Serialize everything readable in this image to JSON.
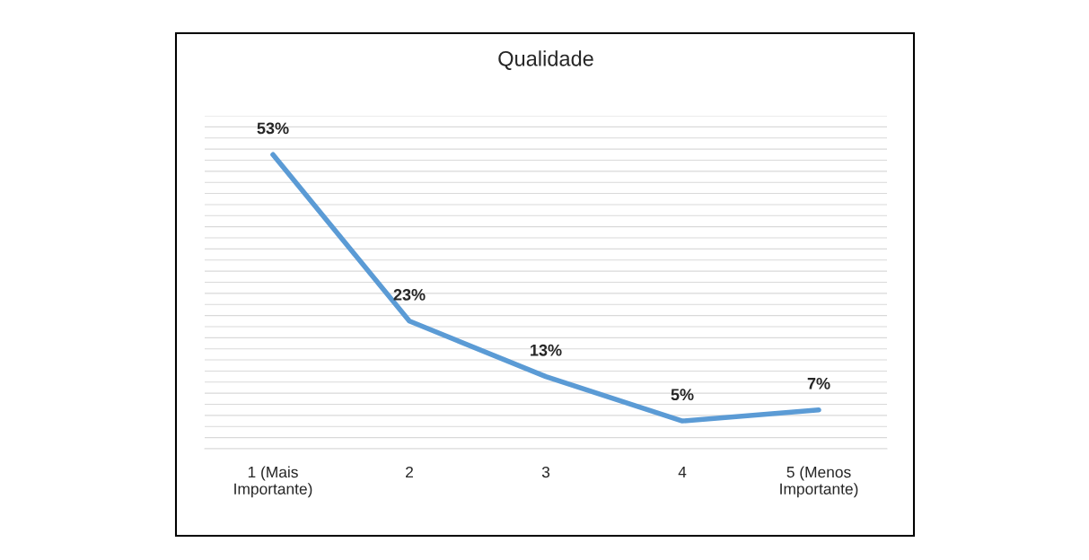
{
  "chart_data": {
    "type": "line",
    "title": "Qualidade",
    "categories": [
      "1 (Mais\nImportante)",
      "2",
      "3",
      "4",
      "5 (Menos\nImportante)"
    ],
    "series": [
      {
        "color": "#5b9bd5",
        "values": [
          53,
          23,
          13,
          5,
          7
        ],
        "value_labels": [
          "53%",
          "23%",
          "13%",
          "5%",
          "7%"
        ]
      }
    ],
    "ylim": [
      0,
      60
    ],
    "yticks": [
      {
        "value": 0,
        "label": null
      },
      {
        "value": 2,
        "label": null
      },
      {
        "value": 4,
        "label": null
      },
      {
        "value": 6,
        "label": null
      },
      {
        "value": 8,
        "label": null
      },
      {
        "value": 10,
        "label": null
      },
      {
        "value": 12,
        "label": null
      },
      {
        "value": 14,
        "label": null
      },
      {
        "value": 16,
        "label": null
      },
      {
        "value": 18,
        "label": null
      },
      {
        "value": 20,
        "label": null
      },
      {
        "value": 22,
        "label": null
      },
      {
        "value": 24,
        "label": null
      },
      {
        "value": 26,
        "label": null
      },
      {
        "value": 28,
        "label": null
      },
      {
        "value": 30,
        "label": null
      },
      {
        "value": 32,
        "label": null
      },
      {
        "value": 34,
        "label": null
      },
      {
        "value": 36,
        "label": null
      },
      {
        "value": 38,
        "label": null
      },
      {
        "value": 40,
        "label": null
      },
      {
        "value": 42,
        "label": null
      },
      {
        "value": 44,
        "label": null
      },
      {
        "value": 46,
        "label": null
      },
      {
        "value": 48,
        "label": null
      },
      {
        "value": 50,
        "label": null
      },
      {
        "value": 52,
        "label": null
      },
      {
        "value": 54,
        "label": null
      },
      {
        "value": 56,
        "label": null
      },
      {
        "value": 58,
        "label": null
      },
      {
        "value": 60,
        "label": null
      }
    ],
    "grid": "y",
    "tick_labels": "x",
    "marker": "none",
    "line_style": "solid"
  }
}
